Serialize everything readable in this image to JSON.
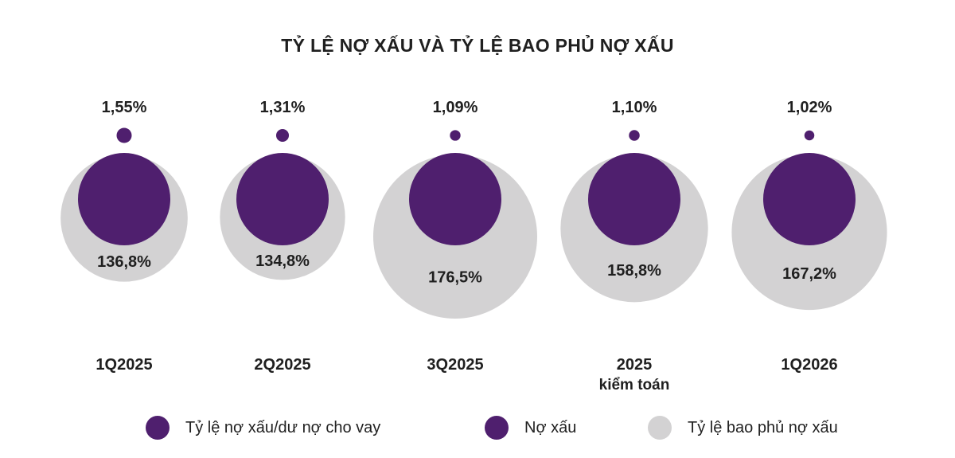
{
  "chart_data": {
    "type": "bubble",
    "title": "TỶ LỆ NỢ XẤU VÀ TỶ LỆ BAO PHỦ NỢ XẤU",
    "categories": [
      {
        "label": "1Q2025",
        "sublabel": ""
      },
      {
        "label": "2Q2025",
        "sublabel": ""
      },
      {
        "label": "3Q2025",
        "sublabel": ""
      },
      {
        "label": "2025",
        "sublabel": "kiểm toán"
      },
      {
        "label": "1Q2026",
        "sublabel": ""
      }
    ],
    "series": [
      {
        "name": "Tỷ lệ nợ xấu/dư nợ cho vay",
        "values": [
          1.55,
          1.31,
          1.09,
          1.1,
          1.02
        ],
        "labels": [
          "1,55%",
          "1,31%",
          "1,09%",
          "1,10%",
          "1,02%"
        ],
        "color": "#4f1f6e"
      },
      {
        "name": "Nợ xấu",
        "values": [
          1,
          1,
          1,
          1,
          1
        ],
        "color": "#4f1f6e"
      },
      {
        "name": "Tỷ lệ bao phủ nợ xấu",
        "values": [
          136.8,
          134.8,
          176.5,
          158.8,
          167.2
        ],
        "labels": [
          "136,8%",
          "134,8%",
          "176,5%",
          "158,8%",
          "167,2%"
        ],
        "color": "#d3d2d3"
      }
    ]
  }
}
